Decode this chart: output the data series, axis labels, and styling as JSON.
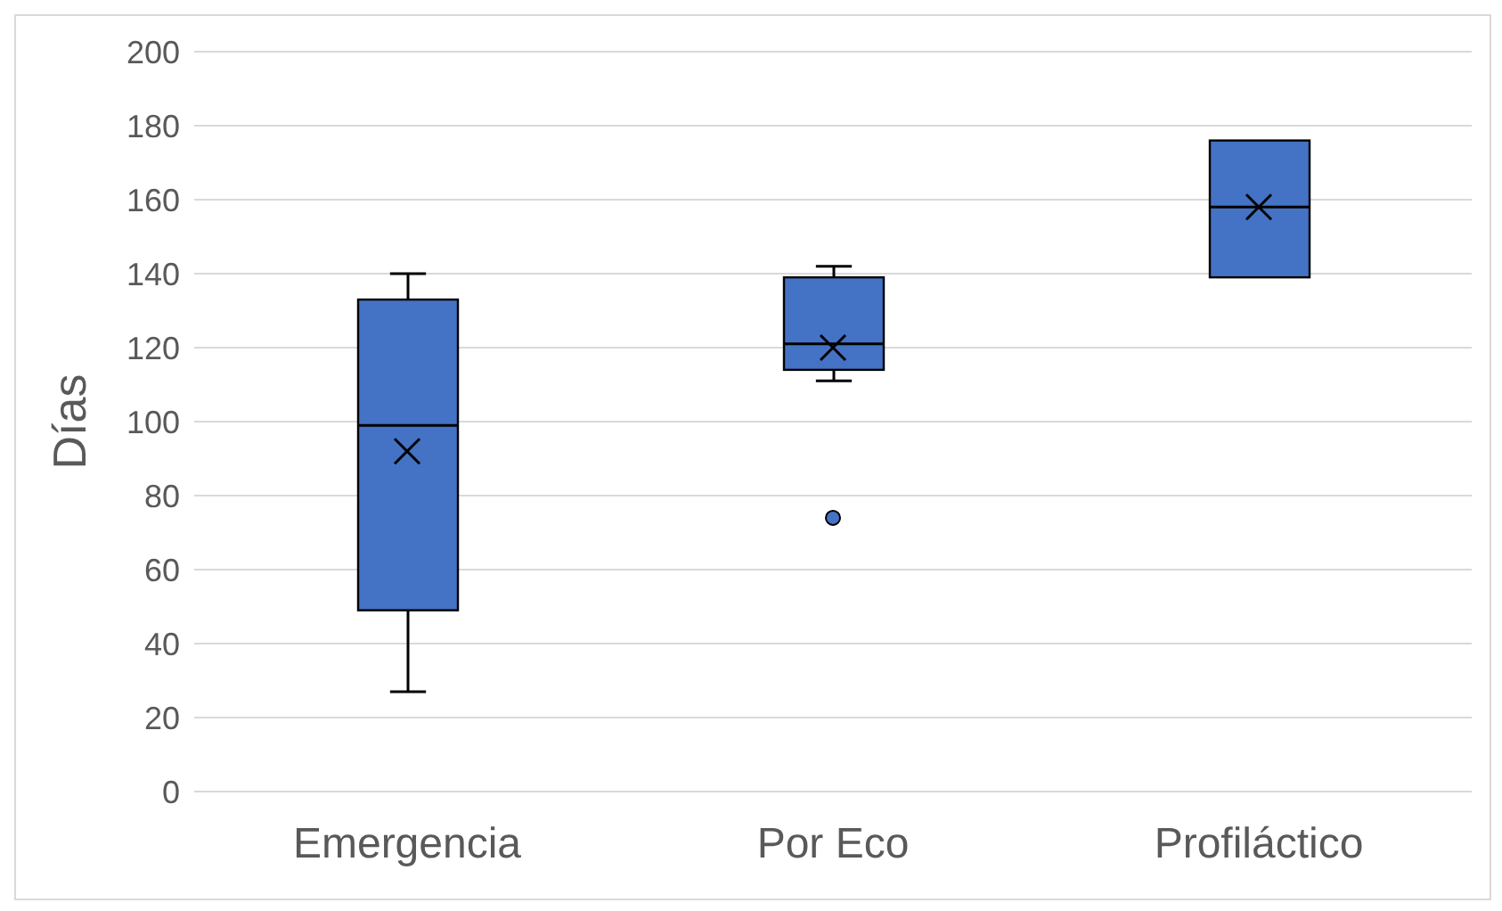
{
  "chart_data": {
    "type": "box",
    "ylabel": "Días",
    "categories": [
      "Emergencia",
      "Por Eco",
      "Profiláctico"
    ],
    "color": "#4472c4",
    "boxes": [
      {
        "low": 27,
        "q1": 49,
        "median": 99,
        "q3": 133,
        "high": 140,
        "mean": 92
      },
      {
        "low": 111,
        "q1": 114,
        "median": 121,
        "q3": 139,
        "high": 142,
        "mean": 120,
        "outliers": [
          74
        ]
      },
      {
        "low": 139,
        "q1": 139,
        "median": 158,
        "q3": 176,
        "high": 176,
        "mean": 158
      }
    ],
    "ylim": [
      0,
      200
    ],
    "yticks": [
      0,
      20,
      40,
      60,
      80,
      100,
      120,
      140,
      160,
      180,
      200
    ],
    "grid": "y",
    "legend": false
  }
}
